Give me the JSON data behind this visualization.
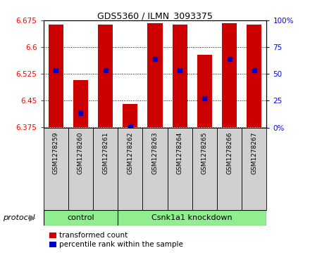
{
  "title": "GDS5360 / ILMN_3093375",
  "samples": [
    "GSM1278259",
    "GSM1278260",
    "GSM1278261",
    "GSM1278262",
    "GSM1278263",
    "GSM1278264",
    "GSM1278265",
    "GSM1278266",
    "GSM1278267"
  ],
  "bar_tops": [
    6.663,
    6.508,
    6.663,
    6.441,
    6.668,
    6.663,
    6.578,
    6.668,
    6.663
  ],
  "bar_bottom": 6.375,
  "blue_vals": [
    6.535,
    6.415,
    6.535,
    6.378,
    6.567,
    6.535,
    6.456,
    6.567,
    6.535
  ],
  "ylim_left": [
    6.375,
    6.675
  ],
  "ylim_right": [
    0,
    100
  ],
  "yticks_left": [
    6.375,
    6.45,
    6.525,
    6.6,
    6.675
  ],
  "yticks_right": [
    0,
    25,
    50,
    75,
    100
  ],
  "ytick_labels_left": [
    "6.375",
    "6.45",
    "6.525",
    "6.6",
    "6.675"
  ],
  "ytick_labels_right": [
    "0%",
    "25",
    "50",
    "75",
    "100%"
  ],
  "bar_color": "#CC0000",
  "blue_color": "#0000CC",
  "bar_width": 0.6,
  "protocol_labels": [
    "control",
    "Csnk1a1 knockdown"
  ],
  "protocol_color": "#90EE90",
  "legend_items": [
    "transformed count",
    "percentile rank within the sample"
  ],
  "legend_colors": [
    "#CC0000",
    "#0000CC"
  ],
  "sample_box_color": "#d0d0d0",
  "plot_bg": "#ffffff"
}
